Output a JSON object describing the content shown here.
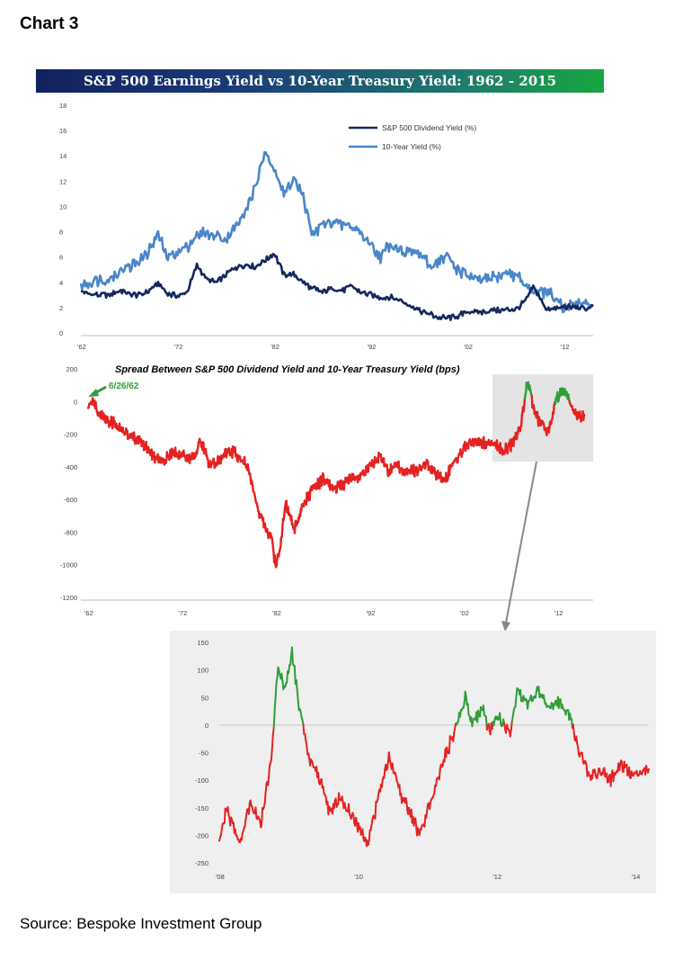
{
  "page": {
    "label": "Chart 3",
    "source": "Source: Bespoke Investment Group"
  },
  "colors": {
    "dividend_yield": "#15285e",
    "ten_year_yield": "#4a86c9",
    "spread_negative": "#e52222",
    "spread_positive": "#2f9e3a",
    "annotation": "#2f9e3a",
    "zoom_panel_bg": "#efefef",
    "connector": "#888888"
  },
  "chart_data": [
    {
      "type": "line",
      "title": "S&P 500 Earnings Yield vs 10-Year Treasury Yield: 1962 - 2015",
      "xlim": [
        1962,
        2015
      ],
      "ylim": [
        0,
        18
      ],
      "x_ticks": [
        1962,
        1972,
        1982,
        1992,
        2002,
        2012
      ],
      "x_tick_labels": [
        "'62",
        "'72",
        "'82",
        "'92",
        "'02",
        "'12"
      ],
      "y_ticks": [
        0,
        2,
        4,
        6,
        8,
        10,
        12,
        14,
        16,
        18
      ],
      "y_tick_labels": [
        "0",
        "2",
        "4",
        "6",
        "8",
        "10",
        "12",
        "14",
        "16",
        "18"
      ],
      "legend_position": "top-right",
      "grid": false,
      "series": [
        {
          "name": "S&P 500 Dividend Yield (%)",
          "x": [
            1962,
            1963,
            1964,
            1965,
            1966,
            1967,
            1968,
            1969,
            1970,
            1971,
            1972,
            1973,
            1974,
            1975,
            1976,
            1977,
            1978,
            1979,
            1980,
            1981,
            1982,
            1983,
            1984,
            1985,
            1986,
            1987,
            1988,
            1989,
            1990,
            1991,
            1992,
            1993,
            1994,
            1995,
            1996,
            1997,
            1998,
            1999,
            2000,
            2001,
            2002,
            2003,
            2004,
            2005,
            2006,
            2007,
            2008,
            2008.8,
            2009.2,
            2010,
            2011,
            2012,
            2013,
            2014,
            2015
          ],
          "y": [
            3.3,
            3.1,
            3.0,
            3.0,
            3.4,
            3.1,
            3.0,
            3.3,
            3.9,
            3.1,
            2.9,
            3.3,
            5.3,
            4.3,
            4.0,
            4.6,
            5.2,
            5.4,
            5.2,
            5.7,
            6.3,
            4.6,
            4.6,
            4.0,
            3.5,
            3.2,
            3.6,
            3.3,
            3.7,
            3.2,
            3.0,
            2.8,
            2.8,
            2.6,
            2.2,
            1.8,
            1.5,
            1.2,
            1.2,
            1.3,
            1.7,
            1.6,
            1.7,
            1.8,
            1.8,
            1.9,
            2.5,
            3.6,
            3.2,
            2.0,
            1.9,
            2.1,
            2.0,
            1.9,
            2.1
          ]
        },
        {
          "name": "10-Year Yield (%)",
          "x": [
            1962,
            1963,
            1964,
            1965,
            1966,
            1967,
            1968,
            1969,
            1970,
            1971,
            1972,
            1973,
            1974,
            1975,
            1976,
            1977,
            1978,
            1979,
            1980,
            1981,
            1982,
            1983,
            1984,
            1985,
            1986,
            1987,
            1988,
            1989,
            1990,
            1991,
            1992,
            1993,
            1994,
            1995,
            1996,
            1997,
            1998,
            1999,
            2000,
            2001,
            2002,
            2003,
            2004,
            2005,
            2006,
            2007,
            2008,
            2009,
            2010,
            2011,
            2012,
            2013,
            2014,
            2015
          ],
          "y": [
            3.9,
            4.0,
            4.2,
            4.3,
            4.9,
            5.2,
            5.7,
            6.5,
            7.8,
            6.0,
            6.3,
            6.9,
            7.6,
            8.0,
            7.6,
            7.4,
            8.4,
            9.4,
            11.5,
            14.0,
            13.2,
            10.8,
            12.4,
            10.6,
            7.7,
            8.5,
            8.9,
            8.5,
            8.5,
            7.9,
            7.0,
            6.0,
            7.1,
            6.6,
            6.4,
            6.4,
            5.3,
            5.6,
            6.0,
            5.0,
            4.6,
            4.0,
            4.3,
            4.3,
            4.8,
            4.6,
            3.7,
            3.3,
            3.2,
            2.8,
            1.8,
            2.4,
            2.5,
            2.1
          ]
        }
      ]
    },
    {
      "type": "line",
      "title": "Spread Between S&P 500 Dividend Yield and 10-Year Treasury Yield (bps)",
      "annotation": "6/26/62",
      "xlim": [
        1962,
        2015
      ],
      "ylim": [
        -1200,
        200
      ],
      "x_ticks": [
        1962,
        1972,
        1982,
        1992,
        2002,
        2012
      ],
      "x_tick_labels": [
        "'62",
        "'72",
        "'82",
        "'92",
        "'02",
        "'12"
      ],
      "y_ticks": [
        -1200,
        -1000,
        -800,
        -600,
        -400,
        -200,
        0,
        200
      ],
      "y_tick_labels": [
        "-1200",
        "-1000",
        "-800",
        "-600",
        "-400",
        "-200",
        "0",
        "200"
      ],
      "grid": false,
      "series": [
        {
          "x": [
            1962,
            1962.5,
            1963,
            1964,
            1965,
            1966,
            1967,
            1968,
            1969,
            1970,
            1971,
            1972,
            1973,
            1974,
            1975,
            1976,
            1977,
            1978,
            1979,
            1980,
            1981,
            1981.5,
            1982,
            1982.5,
            1983,
            1984,
            1985,
            1986,
            1987,
            1988,
            1989,
            1990,
            1991,
            1992,
            1993,
            1994,
            1995,
            1996,
            1997,
            1998,
            1999,
            2000,
            2001,
            2002,
            2003,
            2004,
            2005,
            2006,
            2007,
            2008,
            2008.8,
            2009.3,
            2010,
            2011,
            2011.8,
            2012.5,
            2013,
            2014,
            2014.8
          ],
          "y": [
            -40,
            5,
            -60,
            -110,
            -140,
            -190,
            -230,
            -270,
            -340,
            -380,
            -300,
            -330,
            -360,
            -240,
            -390,
            -360,
            -300,
            -330,
            -400,
            -650,
            -800,
            -820,
            -1020,
            -880,
            -620,
            -780,
            -620,
            -530,
            -480,
            -530,
            -520,
            -470,
            -470,
            -400,
            -330,
            -430,
            -400,
            -420,
            -430,
            -380,
            -440,
            -480,
            -370,
            -290,
            -240,
            -260,
            -250,
            -300,
            -270,
            -160,
            130,
            -20,
            -120,
            -190,
            20,
            60,
            50,
            -100,
            -80
          ]
        }
      ]
    },
    {
      "type": "line",
      "xlim": [
        2008,
        2014.2
      ],
      "ylim": [
        -250,
        150
      ],
      "x_ticks": [
        2008,
        2010,
        2012,
        2014
      ],
      "x_tick_labels": [
        "'08",
        "'10",
        "'12",
        "'14"
      ],
      "y_ticks": [
        -250,
        -200,
        -150,
        -100,
        -50,
        0,
        50,
        100,
        150
      ],
      "y_tick_labels": [
        "-250",
        "-200",
        "-150",
        "-100",
        "-50",
        "0",
        "50",
        "100",
        "150"
      ],
      "grid": false,
      "series": [
        {
          "x": [
            2008,
            2008.1,
            2008.3,
            2008.45,
            2008.6,
            2008.75,
            2008.85,
            2008.95,
            2009.05,
            2009.15,
            2009.3,
            2009.45,
            2009.6,
            2009.75,
            2009.95,
            2010.15,
            2010.3,
            2010.45,
            2010.6,
            2010.75,
            2010.9,
            2011.0,
            2011.15,
            2011.25,
            2011.4,
            2011.55,
            2011.65,
            2011.8,
            2011.9,
            2012.0,
            2012.1,
            2012.2,
            2012.3,
            2012.45,
            2012.6,
            2012.75,
            2012.9,
            2013.05,
            2013.2,
            2013.35,
            2013.5,
            2013.65,
            2013.8,
            2013.95,
            2014.1,
            2014.2
          ],
          "y": [
            -210,
            -150,
            -215,
            -140,
            -180,
            -60,
            110,
            60,
            135,
            40,
            -60,
            -100,
            -160,
            -130,
            -175,
            -210,
            -130,
            -60,
            -120,
            -160,
            -200,
            -160,
            -100,
            -60,
            -10,
            50,
            0,
            30,
            -10,
            20,
            0,
            -10,
            60,
            40,
            60,
            30,
            40,
            20,
            -50,
            -90,
            -80,
            -100,
            -70,
            -90,
            -80,
            -80
          ]
        }
      ]
    }
  ]
}
